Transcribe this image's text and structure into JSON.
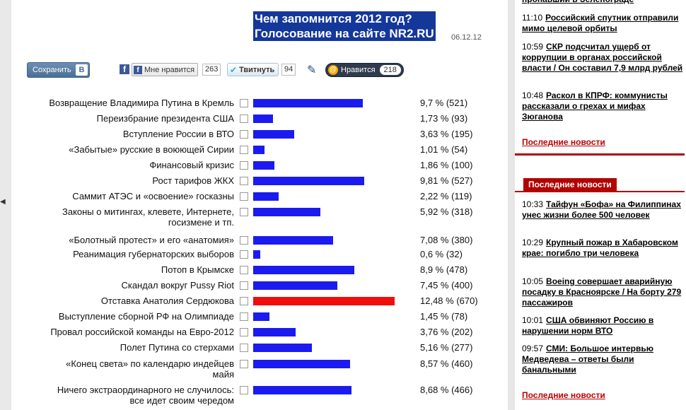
{
  "headline": {
    "text": "Чем запомнится 2012 год?\nГолосование на сайте NR2.RU",
    "date": "06.12.12"
  },
  "share": {
    "vk_label": "Сохранить",
    "vk_icon": "В",
    "fb_like_label": "Мне нравится",
    "fb_count": "263",
    "tweet_label": "Твитнуть",
    "tweet_count": "94",
    "mail_label": "Нравится",
    "mail_count": "218"
  },
  "poll": {
    "max_percent": 12.48,
    "options": [
      {
        "label": "Возвращение Владимира Путина в Кремль",
        "value": "9,7 % (521)",
        "percent": 9.7
      },
      {
        "label": "Переизбрание президента США",
        "value": "1,73 % (93)",
        "percent": 1.73
      },
      {
        "label": "Вступление России в ВТО",
        "value": "3,63 % (195)",
        "percent": 3.63
      },
      {
        "label": "«Забытые» русские в воюющей Сирии",
        "value": "1,01 % (54)",
        "percent": 1.01
      },
      {
        "label": "Финансовый кризис",
        "value": "1,86 % (100)",
        "percent": 1.86
      },
      {
        "label": "Рост тарифов ЖКХ",
        "value": "9,81 % (527)",
        "percent": 9.81
      },
      {
        "label": "Саммит АТЭС и «освоение» госказны",
        "value": "2,22 % (119)",
        "percent": 2.22
      },
      {
        "label": "Законы о митингах, клевете, Интернете,\nгосизмене и тп.",
        "value": "5,92 % (318)",
        "percent": 5.92
      },
      {
        "label": "«Болотный протест» и его «анатомия»",
        "value": "7,08 % (380)",
        "percent": 7.08
      },
      {
        "label": "Реанимация губернаторских выборов",
        "value": "0,6 % (32)",
        "percent": 0.6
      },
      {
        "label": "Потоп в Крымске",
        "value": "8,9 % (478)",
        "percent": 8.9
      },
      {
        "label": "Скандал вокруг Pussy Riot",
        "value": "7,45 % (400)",
        "percent": 7.45
      },
      {
        "label": "Отставка Анатолия Сердюкова",
        "value": "12,48 % (670)",
        "percent": 12.48,
        "highlight": true
      },
      {
        "label": "Выступление сборной РФ на Олимпиаде",
        "value": "1,45 % (78)",
        "percent": 1.45
      },
      {
        "label": "Провал российской команды на Евро-2012",
        "value": "3,76 % (202)",
        "percent": 3.76
      },
      {
        "label": "Полет Путина со стерхами",
        "value": "5,16 % (277)",
        "percent": 5.16
      },
      {
        "label": "«Конец света» по календарю индейцев\nмайя",
        "value": "8,57 % (460)",
        "percent": 8.57
      },
      {
        "label": "Ничего экстраординарного не случилось:\nвсе идет своим чередом",
        "value": "8,68 % (466)",
        "percent": 8.68
      }
    ]
  },
  "right": {
    "top_news": [
      {
        "time": "",
        "title": "пропавший в Зеленограде"
      },
      {
        "time": "11:10",
        "title": "Российский спутник отправили мимо целевой орбиты"
      },
      {
        "time": "10:59",
        "title": "СКР подсчитал ущерб от коррупции в органах российской власти / Он составил 7,9 млрд рублей"
      },
      {
        "time": "10:48",
        "title": "Раскол в КПРФ: коммунисты рассказали о грехах и мифах Зюганова"
      }
    ],
    "more_label_1": "Последние новости",
    "section_title": "Последние новости",
    "latest_news": [
      {
        "time": "10:33",
        "title": "Тайфун «Бофа» на Филиппинах унес жизни более 500 человек"
      },
      {
        "time": "10:29",
        "title": "Крупный пожар в Хабаровском крае: погибло три человека"
      },
      {
        "time": "10:05",
        "title": "Boeing совершает аварийную посадку в Красноярске / На борту 279 пассажиров"
      },
      {
        "time": "10:01",
        "title": "США обвиняют Россию в нарушении норм ВТО"
      },
      {
        "time": "09:57",
        "title": "СМИ: Большое интервью Медведева – ответы были банальными"
      }
    ],
    "more_label_2": "Последние новости"
  }
}
